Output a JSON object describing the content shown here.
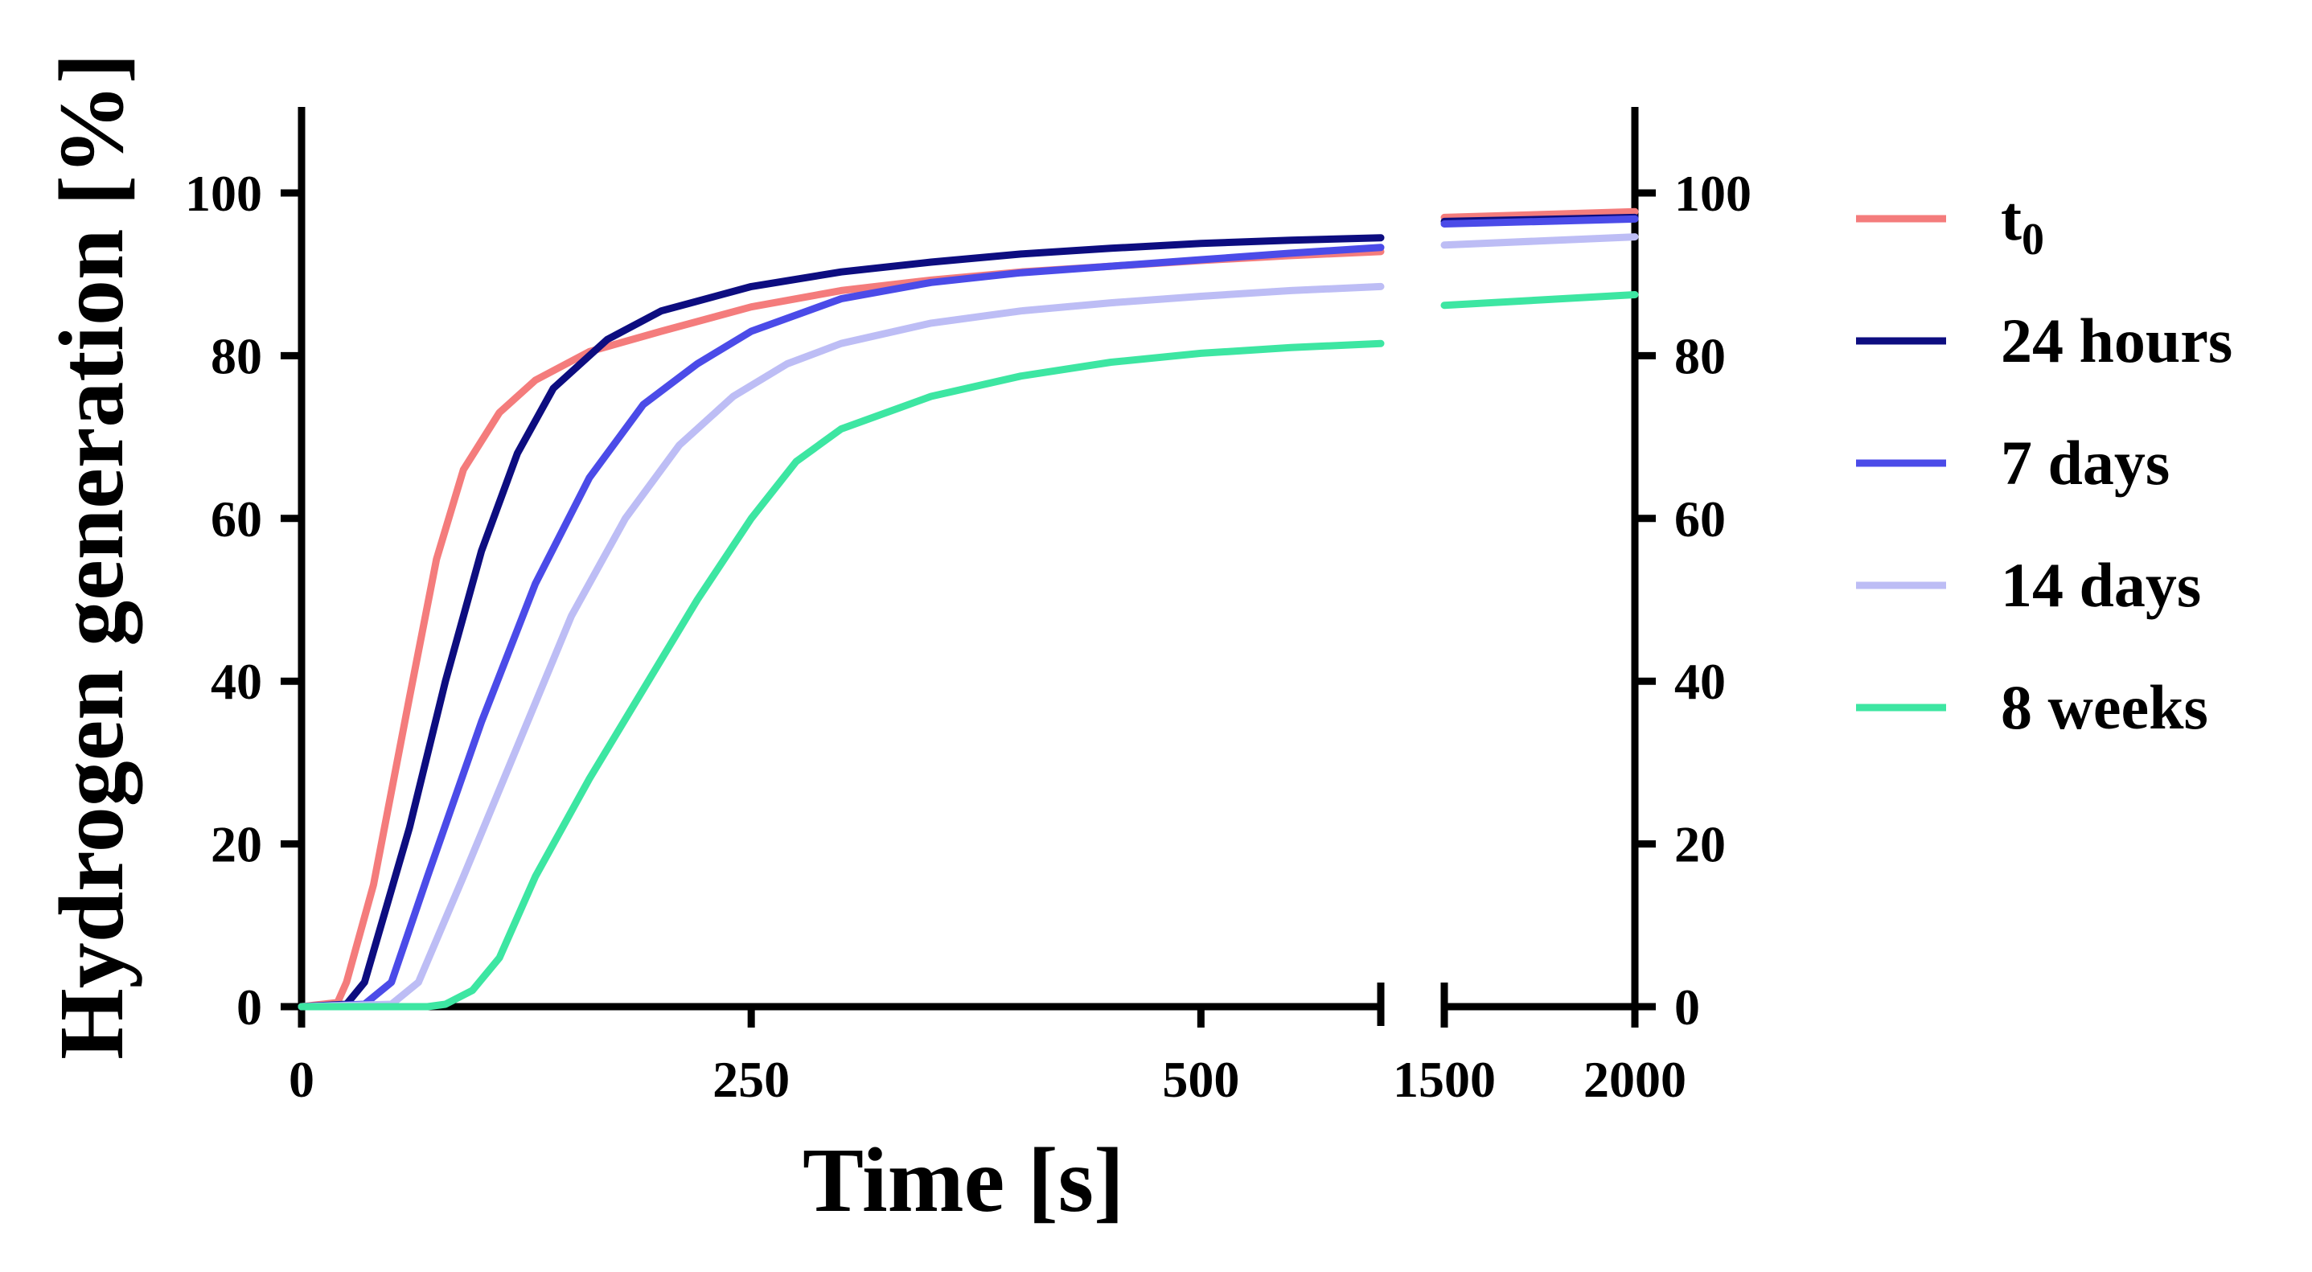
{
  "chart_data": {
    "type": "line",
    "title": "",
    "xlabel": "Time [s]",
    "ylabel": "Hydrogen generation [%]",
    "ylim": [
      0,
      110
    ],
    "y_ticks": [
      0,
      20,
      40,
      60,
      80,
      100
    ],
    "x_axis_broken": true,
    "x_segments": [
      {
        "xlim": [
          0,
          600
        ],
        "ticks": [
          0,
          250,
          500
        ]
      },
      {
        "xlim": [
          1500,
          2000
        ],
        "ticks": [
          1500,
          2000
        ]
      }
    ],
    "legend_position": "right",
    "series": [
      {
        "name": "t0",
        "label_main": "t",
        "label_sub": "0",
        "color": "#F47C7C",
        "points": [
          [
            0,
            0
          ],
          [
            20,
            0.5
          ],
          [
            25,
            3
          ],
          [
            40,
            15
          ],
          [
            60,
            38
          ],
          [
            75,
            55
          ],
          [
            90,
            66
          ],
          [
            110,
            73
          ],
          [
            130,
            77
          ],
          [
            160,
            80.5
          ],
          [
            200,
            83
          ],
          [
            250,
            86
          ],
          [
            300,
            88
          ],
          [
            350,
            89.3
          ],
          [
            400,
            90.3
          ],
          [
            450,
            91
          ],
          [
            500,
            91.7
          ],
          [
            550,
            92.3
          ],
          [
            600,
            92.8
          ],
          [
            1500,
            97
          ],
          [
            2000,
            97.7
          ]
        ]
      },
      {
        "name": "24 hours",
        "label_main": "24 hours",
        "label_sub": "",
        "color": "#0D0D80",
        "points": [
          [
            0,
            0
          ],
          [
            25,
            0.3
          ],
          [
            35,
            3
          ],
          [
            60,
            22
          ],
          [
            80,
            40
          ],
          [
            100,
            56
          ],
          [
            120,
            68
          ],
          [
            140,
            76
          ],
          [
            170,
            82
          ],
          [
            200,
            85.5
          ],
          [
            250,
            88.5
          ],
          [
            300,
            90.3
          ],
          [
            350,
            91.5
          ],
          [
            400,
            92.5
          ],
          [
            450,
            93.2
          ],
          [
            500,
            93.8
          ],
          [
            550,
            94.2
          ],
          [
            600,
            94.5
          ],
          [
            1500,
            96.5
          ],
          [
            2000,
            97
          ]
        ]
      },
      {
        "name": "7 days",
        "label_main": "7 days",
        "label_sub": "",
        "color": "#4B4BE8",
        "points": [
          [
            0,
            0
          ],
          [
            35,
            0.3
          ],
          [
            50,
            3
          ],
          [
            70,
            16
          ],
          [
            100,
            35
          ],
          [
            130,
            52
          ],
          [
            160,
            65
          ],
          [
            190,
            74
          ],
          [
            220,
            79
          ],
          [
            250,
            83
          ],
          [
            300,
            87
          ],
          [
            350,
            89
          ],
          [
            400,
            90.2
          ],
          [
            450,
            91
          ],
          [
            500,
            91.8
          ],
          [
            550,
            92.6
          ],
          [
            600,
            93.3
          ],
          [
            1500,
            96.2
          ],
          [
            2000,
            96.8
          ]
        ]
      },
      {
        "name": "14 days",
        "label_main": "14 days",
        "label_sub": "",
        "color": "#BDBDF5",
        "points": [
          [
            0,
            0
          ],
          [
            50,
            0.3
          ],
          [
            65,
            3
          ],
          [
            90,
            16
          ],
          [
            120,
            32
          ],
          [
            150,
            48
          ],
          [
            180,
            60
          ],
          [
            210,
            69
          ],
          [
            240,
            75
          ],
          [
            270,
            79
          ],
          [
            300,
            81.5
          ],
          [
            350,
            84
          ],
          [
            400,
            85.5
          ],
          [
            450,
            86.5
          ],
          [
            500,
            87.3
          ],
          [
            550,
            88
          ],
          [
            600,
            88.5
          ],
          [
            1500,
            93.6
          ],
          [
            2000,
            94.6
          ]
        ]
      },
      {
        "name": "8 weeks",
        "label_main": "8 weeks",
        "label_sub": "",
        "color": "#3DE6A2",
        "points": [
          [
            0,
            0
          ],
          [
            70,
            0
          ],
          [
            80,
            0.3
          ],
          [
            95,
            2
          ],
          [
            110,
            6
          ],
          [
            130,
            16
          ],
          [
            160,
            28
          ],
          [
            190,
            39
          ],
          [
            220,
            50
          ],
          [
            250,
            60
          ],
          [
            275,
            67
          ],
          [
            300,
            71
          ],
          [
            350,
            75
          ],
          [
            400,
            77.5
          ],
          [
            450,
            79.2
          ],
          [
            500,
            80.3
          ],
          [
            550,
            81
          ],
          [
            600,
            81.5
          ],
          [
            1500,
            86.2
          ],
          [
            2000,
            87.5
          ]
        ]
      }
    ]
  }
}
